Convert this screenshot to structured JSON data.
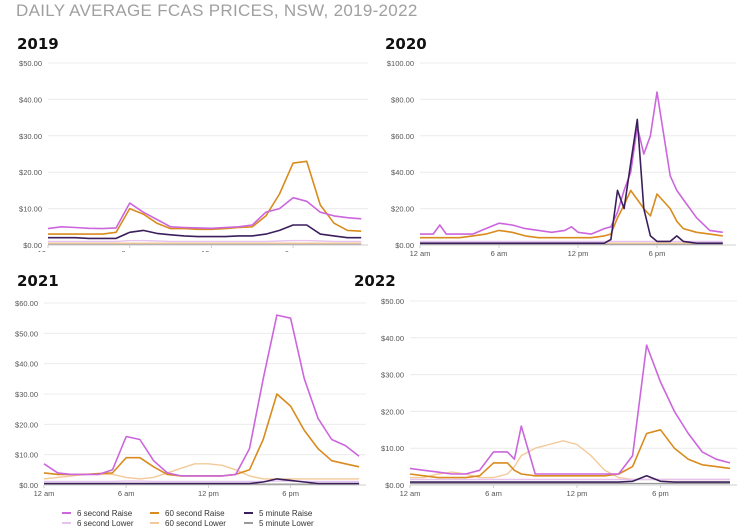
{
  "page_title": "DAILY AVERAGE FCAS PRICES, NSW, 2019-2022",
  "legend": [
    {
      "label": "6 second Raise",
      "color": "#cc66dd"
    },
    {
      "label": "6 second Lower",
      "color": "#e6c3ee"
    },
    {
      "label": "60 second Raise",
      "color": "#d98b1e"
    },
    {
      "label": "60 second Lower",
      "color": "#f3c999"
    },
    {
      "label": "5 minute Raise",
      "color": "#3b1f5c"
    },
    {
      "label": "5 minute Lower",
      "color": "#9a9a9a"
    }
  ],
  "chart_data": [
    {
      "type": "line",
      "title": "2019",
      "x": [
        0,
        1,
        2,
        3,
        4,
        5,
        6,
        7,
        8,
        9,
        10,
        11,
        12,
        13,
        14,
        15,
        16,
        17,
        18,
        19,
        20,
        21,
        22,
        23
      ],
      "xticks": [
        {
          "v": 0,
          "label": "12 am"
        },
        {
          "v": 6,
          "label": "6 am"
        },
        {
          "v": 12,
          "label": "12 pm"
        },
        {
          "v": 18,
          "label": "6 pm"
        }
      ],
      "xlim": [
        0,
        23.5
      ],
      "yticks": [
        {
          "v": 0,
          "label": "$0.00"
        },
        {
          "v": 10,
          "label": "$10.00"
        },
        {
          "v": 20,
          "label": "$20.00"
        },
        {
          "v": 30,
          "label": "$30.00"
        },
        {
          "v": 40,
          "label": "$40.00"
        },
        {
          "v": 50,
          "label": "$50.00"
        }
      ],
      "ylim": [
        0,
        50
      ],
      "series": [
        {
          "name": "6 second Raise",
          "values": [
            4.5,
            5,
            4.8,
            4.6,
            4.5,
            4.7,
            11.5,
            9,
            7,
            5,
            4.8,
            4.7,
            4.6,
            4.8,
            5,
            5.5,
            9,
            10,
            13,
            12,
            9,
            8,
            7.5,
            7.2
          ]
        },
        {
          "name": "6 second Lower",
          "values": [
            1,
            1,
            1,
            1,
            1,
            1,
            1.2,
            1.2,
            1.1,
            1,
            1,
            1,
            1,
            1,
            1,
            1,
            1,
            1.1,
            1.2,
            1.2,
            1.1,
            1,
            1,
            1
          ]
        },
        {
          "name": "60 second Raise",
          "values": [
            3,
            3,
            3,
            3,
            3,
            3.5,
            10,
            8.5,
            6,
            4.5,
            4.5,
            4.3,
            4.3,
            4.5,
            4.8,
            5,
            8,
            14,
            22.5,
            23,
            11,
            6,
            4,
            3.8
          ]
        },
        {
          "name": "60 second Lower",
          "values": [
            0.5,
            0.5,
            0.5,
            0.5,
            0.5,
            0.5,
            0.5,
            0.5,
            0.5,
            0.5,
            0.5,
            0.5,
            0.5,
            0.5,
            0.5,
            0.5,
            0.5,
            0.5,
            0.5,
            0.5,
            0.5,
            0.5,
            0.5,
            0.5
          ]
        },
        {
          "name": "5 minute Raise",
          "values": [
            2,
            2,
            2,
            1.8,
            1.8,
            1.8,
            3.5,
            4,
            3.2,
            2.8,
            2.5,
            2.3,
            2.3,
            2.3,
            2.5,
            2.5,
            3,
            4,
            5.5,
            5.5,
            3,
            2.5,
            2,
            2
          ]
        },
        {
          "name": "5 minute Lower",
          "values": [
            0.3,
            0.3,
            0.3,
            0.3,
            0.3,
            0.3,
            0.3,
            0.3,
            0.3,
            0.3,
            0.3,
            0.3,
            0.3,
            0.3,
            0.3,
            0.3,
            0.3,
            0.3,
            0.3,
            0.3,
            0.3,
            0.3,
            0.3,
            0.3
          ]
        }
      ]
    },
    {
      "type": "line",
      "title": "2020",
      "x": [
        0,
        1,
        1.5,
        2,
        3,
        4,
        5,
        6,
        7,
        8,
        9,
        10,
        11,
        11.5,
        12,
        13,
        14,
        14.5,
        15,
        15.5,
        16,
        16.5,
        17,
        17.5,
        18,
        19,
        19.5,
        20,
        21,
        22,
        23
      ],
      "xticks": [
        {
          "v": 0,
          "label": "12 am"
        },
        {
          "v": 6,
          "label": "6 am"
        },
        {
          "v": 12,
          "label": "12 pm"
        },
        {
          "v": 18,
          "label": "6 pm"
        }
      ],
      "xlim": [
        0,
        24
      ],
      "yticks": [
        {
          "v": 0,
          "label": "$0.00"
        },
        {
          "v": 20,
          "label": "$20.00"
        },
        {
          "v": 40,
          "label": "$40.00"
        },
        {
          "v": 60,
          "label": "$60.00"
        },
        {
          "v": 80,
          "label": "$80.00"
        },
        {
          "v": 100,
          "label": "$100.00"
        }
      ],
      "ylim": [
        0,
        100
      ],
      "series": [
        {
          "name": "6 second Raise",
          "values": [
            6,
            6,
            11,
            6,
            6,
            6,
            9,
            12,
            11,
            9,
            8,
            7,
            8,
            10,
            7,
            6,
            9,
            10,
            18,
            30,
            40,
            65,
            50,
            60,
            84,
            38,
            30,
            25,
            15,
            8,
            7
          ]
        },
        {
          "name": "6 second Lower",
          "values": [
            2,
            2,
            2,
            2,
            2,
            2,
            2,
            2,
            2,
            2,
            2,
            2,
            2,
            2,
            2,
            2,
            2,
            2,
            2,
            2,
            2,
            2,
            2,
            2,
            2,
            2,
            2,
            2,
            2,
            2,
            2
          ]
        },
        {
          "name": "60 second Raise",
          "values": [
            4,
            4,
            4,
            4,
            4,
            5,
            6,
            8,
            7,
            5,
            4,
            4,
            4,
            4,
            4,
            4,
            5,
            6,
            15,
            22,
            30,
            25,
            20,
            16,
            28,
            20,
            13,
            9,
            7,
            6,
            5
          ]
        },
        {
          "name": "60 second Lower",
          "values": [
            1,
            1,
            1,
            1,
            1,
            1,
            1,
            1,
            1,
            1,
            1,
            1,
            1,
            1,
            1,
            1,
            1,
            1,
            1,
            1,
            1,
            1,
            1,
            1,
            1,
            1,
            1,
            1,
            1,
            1,
            1
          ]
        },
        {
          "name": "5 minute Raise",
          "values": [
            1,
            1,
            1,
            1,
            1,
            1,
            1,
            1,
            1,
            1,
            1,
            1,
            1,
            1,
            1,
            1,
            1,
            3,
            30,
            20,
            45,
            69,
            20,
            5,
            2,
            2,
            5,
            2,
            1,
            1,
            1
          ]
        },
        {
          "name": "5 minute Lower",
          "values": [
            0.5,
            0.5,
            0.5,
            0.5,
            0.5,
            0.5,
            0.5,
            0.5,
            0.5,
            0.5,
            0.5,
            0.5,
            0.5,
            0.5,
            0.5,
            0.5,
            0.5,
            0.5,
            0.5,
            0.5,
            0.5,
            0.5,
            0.5,
            0.5,
            0.5,
            0.5,
            0.5,
            0.5,
            0.5,
            0.5,
            0.5
          ]
        }
      ]
    },
    {
      "type": "line",
      "title": "2021",
      "x": [
        0,
        1,
        2,
        3,
        4,
        5,
        6,
        7,
        8,
        9,
        10,
        11,
        12,
        13,
        14,
        15,
        16,
        17,
        18,
        19,
        20,
        21,
        22,
        23
      ],
      "xticks": [
        {
          "v": 0,
          "label": "12 am"
        },
        {
          "v": 6,
          "label": "6 am"
        },
        {
          "v": 12,
          "label": "12 pm"
        },
        {
          "v": 18,
          "label": "6 pm"
        }
      ],
      "xlim": [
        0,
        23.5
      ],
      "yticks": [
        {
          "v": 0,
          "label": "$0.00"
        },
        {
          "v": 10,
          "label": "$10.00"
        },
        {
          "v": 20,
          "label": "$20.00"
        },
        {
          "v": 30,
          "label": "$30.00"
        },
        {
          "v": 40,
          "label": "$40.00"
        },
        {
          "v": 50,
          "label": "$50.00"
        },
        {
          "v": 60,
          "label": "$60.00"
        }
      ],
      "ylim": [
        0,
        60
      ],
      "series": [
        {
          "name": "6 second Raise",
          "values": [
            7,
            4,
            3.5,
            3.5,
            3.5,
            5,
            16,
            15,
            8,
            4,
            3,
            3,
            3,
            3,
            3.5,
            12,
            35,
            56,
            55,
            35,
            22,
            15,
            13,
            9.5
          ]
        },
        {
          "name": "6 second Lower",
          "values": [
            1.2,
            1.2,
            1.2,
            1.2,
            1.2,
            1.2,
            1.3,
            1.3,
            1.2,
            1.2,
            1.2,
            1.2,
            1.2,
            1.2,
            1.2,
            1.2,
            1.2,
            1.3,
            1.3,
            1.2,
            1.2,
            1.2,
            1.2,
            1.2
          ]
        },
        {
          "name": "60 second Raise",
          "values": [
            4,
            3.5,
            3.5,
            3.5,
            3.8,
            4,
            9,
            9,
            6,
            3.5,
            3,
            3,
            3,
            3,
            3.5,
            5,
            15,
            30,
            26,
            18,
            12,
            8,
            7,
            6
          ]
        },
        {
          "name": "60 second Lower",
          "values": [
            2,
            2.5,
            3,
            3.5,
            3.5,
            3.5,
            2.5,
            2,
            2.5,
            4,
            5.5,
            7,
            7,
            6.5,
            5,
            3,
            2,
            2,
            2,
            2,
            2,
            2,
            2,
            2
          ]
        },
        {
          "name": "5 minute Raise",
          "values": [
            0.5,
            0.5,
            0.5,
            0.5,
            0.5,
            0.5,
            0.5,
            0.5,
            0.5,
            0.5,
            0.5,
            0.5,
            0.5,
            0.5,
            0.5,
            0.5,
            1,
            2,
            1.5,
            1,
            0.5,
            0.5,
            0.5,
            0.5
          ]
        },
        {
          "name": "5 minute Lower",
          "values": [
            0.3,
            0.3,
            0.3,
            0.3,
            0.3,
            0.3,
            0.3,
            0.3,
            0.3,
            0.3,
            0.3,
            0.3,
            0.3,
            0.3,
            0.3,
            0.3,
            0.3,
            0.3,
            0.3,
            0.3,
            0.3,
            0.3,
            0.3,
            0.3
          ]
        }
      ]
    },
    {
      "type": "line",
      "title": "2022",
      "x": [
        0,
        1,
        2,
        3,
        4,
        5,
        6,
        7,
        7.5,
        8,
        9,
        10,
        11,
        12,
        13,
        14,
        15,
        16,
        17,
        18,
        19,
        20,
        21,
        22,
        23
      ],
      "xticks": [
        {
          "v": 0,
          "label": "12 am"
        },
        {
          "v": 6,
          "label": "6 am"
        },
        {
          "v": 12,
          "label": "12 pm"
        },
        {
          "v": 18,
          "label": "6 pm"
        }
      ],
      "xlim": [
        0,
        23.5
      ],
      "yticks": [
        {
          "v": 0,
          "label": "$0.00"
        },
        {
          "v": 10,
          "label": "$10.00"
        },
        {
          "v": 20,
          "label": "$20.00"
        },
        {
          "v": 30,
          "label": "$30.00"
        },
        {
          "v": 40,
          "label": "$40.00"
        },
        {
          "v": 50,
          "label": "$50.00"
        }
      ],
      "ylim": [
        0,
        50
      ],
      "series": [
        {
          "name": "6 second Raise",
          "values": [
            4.5,
            4,
            3.5,
            3,
            3,
            4,
            9,
            9,
            7,
            16,
            3,
            3,
            3,
            3,
            3,
            3,
            3,
            8,
            38,
            28,
            20,
            14,
            9,
            7,
            6
          ]
        },
        {
          "name": "6 second Lower",
          "values": [
            1.5,
            1.5,
            1.5,
            1.5,
            1.5,
            1.5,
            1.5,
            1.5,
            1.5,
            1.5,
            1.5,
            1.5,
            1.5,
            1.5,
            1.5,
            1.5,
            1.5,
            1.5,
            1.5,
            1.5,
            1.5,
            1.5,
            1.5,
            1.5,
            1.5
          ]
        },
        {
          "name": "60 second Raise",
          "values": [
            3,
            2.5,
            2,
            2,
            2,
            2.5,
            6,
            6,
            4,
            3,
            2.5,
            2.5,
            2.5,
            2.5,
            2.5,
            2.5,
            3,
            5,
            14,
            15,
            10,
            7,
            5.5,
            5,
            4.5
          ]
        },
        {
          "name": "60 second Lower",
          "values": [
            2,
            2,
            3,
            3.5,
            3,
            2,
            2,
            3,
            5,
            8,
            10,
            11,
            12,
            11,
            8,
            4,
            2,
            1.5,
            1.5,
            1.5,
            1.5,
            1.5,
            1.5,
            1.5,
            1.5
          ]
        },
        {
          "name": "5 minute Raise",
          "values": [
            0.8,
            0.8,
            0.8,
            0.8,
            0.8,
            0.8,
            0.8,
            0.8,
            0.8,
            0.8,
            0.8,
            0.8,
            0.8,
            0.8,
            0.8,
            0.8,
            0.8,
            1,
            2.5,
            1,
            0.8,
            0.8,
            0.8,
            0.8,
            0.8
          ]
        },
        {
          "name": "5 minute Lower",
          "values": [
            0.4,
            0.4,
            0.4,
            0.4,
            0.4,
            0.4,
            0.4,
            0.4,
            0.4,
            0.4,
            0.4,
            0.4,
            0.4,
            0.4,
            0.4,
            0.4,
            0.4,
            0.4,
            0.4,
            0.4,
            0.4,
            0.4,
            0.4,
            0.4,
            0.4
          ]
        }
      ]
    }
  ]
}
